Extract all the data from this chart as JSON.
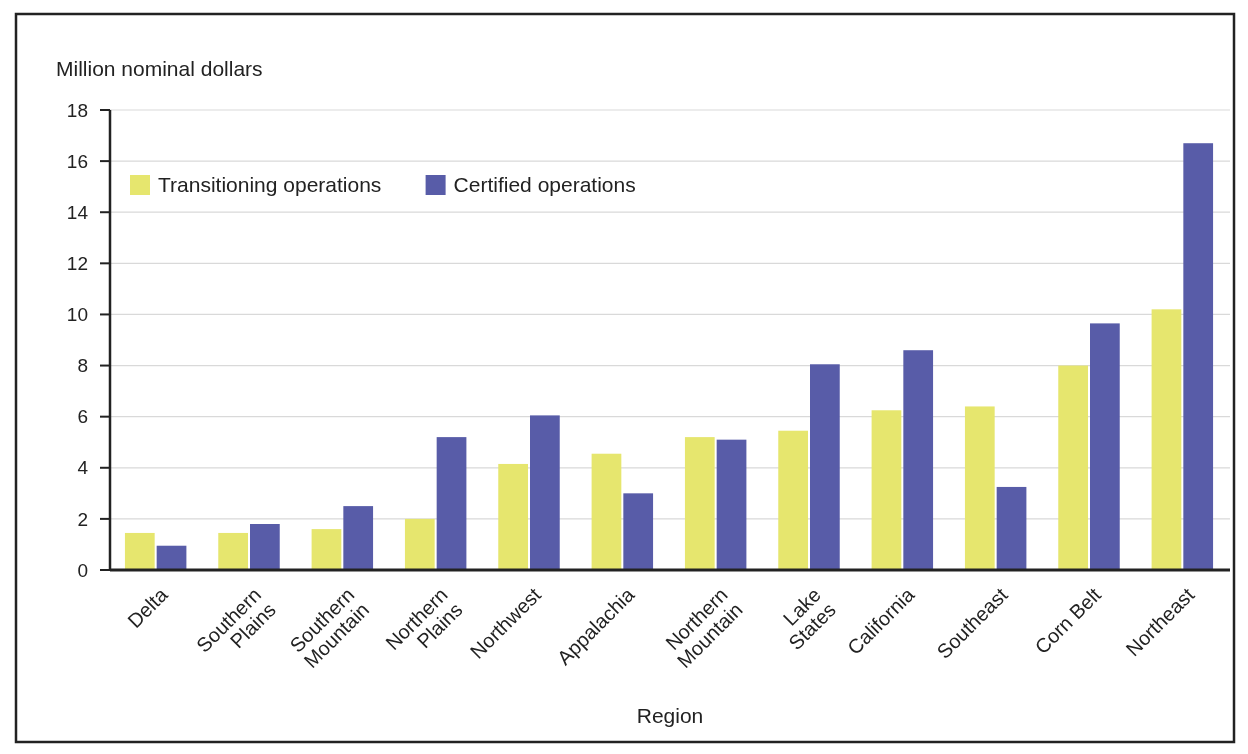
{
  "chart_data": {
    "type": "bar",
    "ylabel": "Million nominal dollars",
    "xlabel": "Region",
    "categories": [
      "Delta",
      "Southern\nPlains",
      "Southern\nMountain",
      "Northern\nPlains",
      "Northwest",
      "Appalachia",
      "Northern\nMountain",
      "Lake\nStates",
      "California",
      "Southeast",
      "Corn Belt",
      "Northeast"
    ],
    "series": [
      {
        "name": "Transitioning operations",
        "color": "#e6e66e",
        "values": [
          1.45,
          1.45,
          1.6,
          2.0,
          4.15,
          4.55,
          5.2,
          5.45,
          6.25,
          6.4,
          8.0,
          10.2
        ]
      },
      {
        "name": "Certified operations",
        "color": "#585ca8",
        "values": [
          0.95,
          1.8,
          2.5,
          5.2,
          6.05,
          3.0,
          5.1,
          8.05,
          8.6,
          3.25,
          9.65,
          16.7
        ]
      }
    ],
    "ylim": [
      0,
      18
    ],
    "yticks": [
      0,
      2,
      4,
      6,
      8,
      10,
      12,
      14,
      16,
      18
    ],
    "grid": "y",
    "legend": "top left"
  }
}
